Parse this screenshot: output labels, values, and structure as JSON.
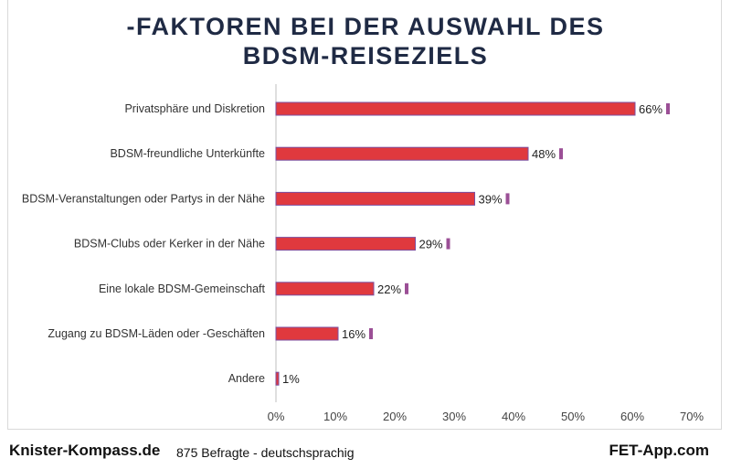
{
  "chart_data": {
    "type": "bar",
    "orientation": "horizontal",
    "title_lines": [
      "-FAKTOREN BEI DER AUSWAHL DES",
      "BDSM-REISEZIELS"
    ],
    "categories": [
      "Privatsphäre und Diskretion",
      "BDSM-freundliche Unterkünfte",
      "BDSM-Veranstaltungen oder Partys in der Nähe",
      "BDSM-Clubs oder Kerker in der Nähe",
      "Eine lokale BDSM-Gemeinschaft",
      "Zugang zu BDSM-Läden oder -Geschäften",
      "Andere"
    ],
    "values": [
      66,
      48,
      39,
      29,
      22,
      16,
      1
    ],
    "data_labels": [
      "66%",
      "48%",
      "39%",
      "29%",
      "22%",
      "16%",
      "1%"
    ],
    "xlim": [
      0,
      70
    ],
    "x_ticks": [
      "0%",
      "10%",
      "20%",
      "30%",
      "40%",
      "50%",
      "60%",
      "70%"
    ],
    "grid": false,
    "colors": {
      "bar": "#e0393e",
      "bar_edge": "#7b4fa0",
      "marker": "#9b4f96",
      "title": "#1f2a44"
    }
  },
  "footer": {
    "left_brand": "Knister-Kompass.de",
    "note": "875 Befragte - deutschsprachig",
    "right_brand": "FET-App.com"
  }
}
